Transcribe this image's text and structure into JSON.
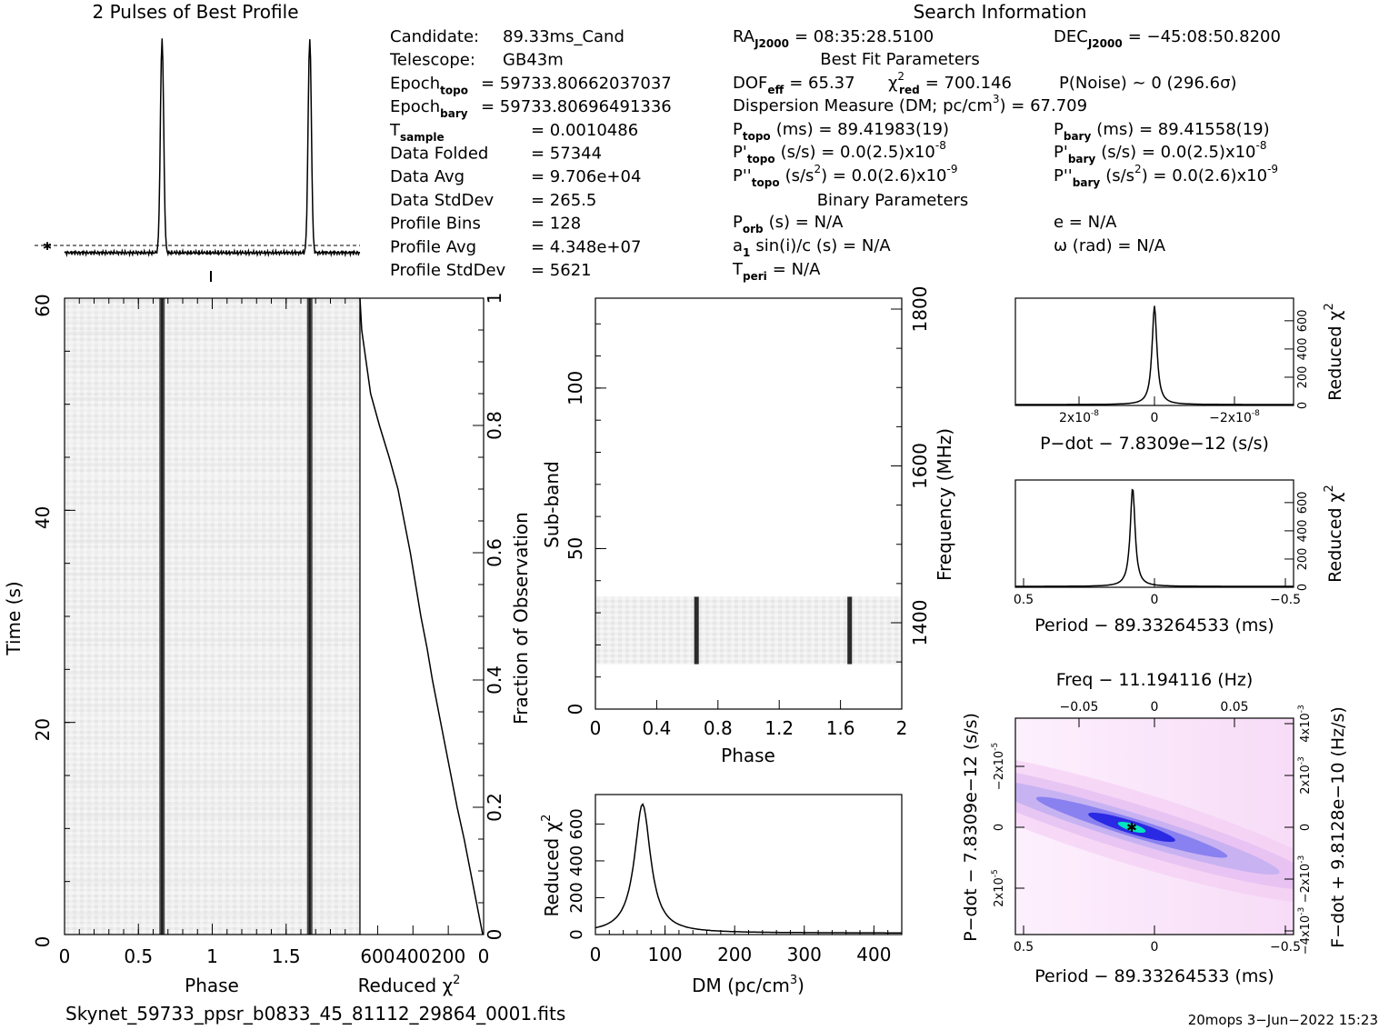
{
  "header": {
    "profile_title": "2 Pulses of Best Profile",
    "search_title": "Search Information",
    "best_fit_title": "Best Fit Parameters",
    "binary_title": "Binary Parameters"
  },
  "info_left": [
    {
      "label": "Candidate:",
      "value": "89.33ms_Cand"
    },
    {
      "label": "Telescope:",
      "value": "GB43m"
    },
    {
      "label": "Epoch",
      "sub": "topo",
      "value": "= 59733.80662037037"
    },
    {
      "label": "Epoch",
      "sub": "bary",
      "value": "= 59733.80696491336"
    },
    {
      "label": "T",
      "sub": "sample",
      "value": "=   0.0010486"
    },
    {
      "label": "Data Folded",
      "value": "=   57344"
    },
    {
      "label": "Data Avg",
      "value": "=   9.706e+04"
    },
    {
      "label": "Data StdDev",
      "value": "=   265.5"
    },
    {
      "label": "Profile Bins",
      "value": "=   128"
    },
    {
      "label": "Profile Avg",
      "value": "=   4.348e+07"
    },
    {
      "label": "Profile StdDev",
      "value": "=   5621"
    }
  ],
  "info_mid": {
    "ra": {
      "label": "RA",
      "sub": "J2000",
      "value": "= 08:35:28.5100"
    },
    "dof": {
      "label": "DOF",
      "sub": "eff",
      "value": "= 65.37"
    },
    "chi2": {
      "label": "χ",
      "sup": "2",
      "sub": "red",
      "value": "= 700.146"
    },
    "pnoise": "P(Noise) ~ 0    (296.6σ)",
    "dm": {
      "text": "Dispersion Measure (DM; pc/cm",
      "sup": "3",
      "tail": ") = 67.709"
    },
    "ptopo": {
      "label": "P",
      "sub": "topo",
      "value": "(ms) =  89.41983(19)"
    },
    "pdtopo": {
      "label": "P'",
      "sub": "topo",
      "value": "(s/s) = 0.0(2.5)x10",
      "exp": "-8"
    },
    "pddtopo": {
      "label": "P''",
      "sub": "topo",
      "value": "(s/s",
      "sup": "2",
      "tail": ") = 0.0(2.6)x10",
      "exp": "-9"
    },
    "porb": {
      "label": "P",
      "sub": "orb",
      "value": "(s) = N/A"
    },
    "a1": {
      "label": "a",
      "sub": "1",
      "value": "sin(i)/c (s) = N/A"
    },
    "tperi": {
      "label": "T",
      "sub": "peri",
      "value": "= N/A"
    }
  },
  "info_right": {
    "dec": {
      "label": "DEC",
      "sub": "J2000",
      "value": "= −45:08:50.8200"
    },
    "pbary": {
      "label": "P",
      "sub": "bary",
      "value": "(ms) =  89.41558(19)"
    },
    "pdbary": {
      "label": "P'",
      "sub": "bary",
      "value": "(s/s) = 0.0(2.5)x10",
      "exp": "-8"
    },
    "pddbary": {
      "label": "P''",
      "sub": "bary",
      "value": "(s/s",
      "sup": "2",
      "tail": ") = 0.0(2.6)x10",
      "exp": "-9"
    },
    "ecc": "e = N/A",
    "omega": "ω (rad) = N/A"
  },
  "footer": {
    "filename": "Skynet_59733_ppsr_b0833_45_81112_29864_0001.fits",
    "stamp": "20mops   3−Jun−2022 15:23"
  },
  "colors": {
    "ink": "#000000",
    "grey_bg": "#f2f2f2",
    "pulse": "#444444",
    "pdot_bg": "#fbe9fb",
    "pdot_band": "#1a1ae0",
    "pdot_peak": "#00e5c0"
  },
  "chart_data": [
    {
      "id": "profile",
      "type": "line",
      "title": "2 Pulses of Best Profile",
      "x_range": [
        0,
        2
      ],
      "pulse_phase": [
        0.66,
        1.66
      ],
      "baseline_level": 0.04,
      "pulse_width_phase": 0.02
    },
    {
      "id": "time_phase",
      "type": "heatmap",
      "xlabel": "Phase",
      "ylabel": "Time (s)",
      "xlim": [
        0,
        2
      ],
      "ylim": [
        0,
        60
      ],
      "xticks": [
        "0",
        "0.5",
        "1",
        "1.5"
      ],
      "yticks": [
        "0",
        "20",
        "40",
        "60"
      ],
      "pulse_phase": [
        0.66,
        1.66
      ]
    },
    {
      "id": "time_chi2",
      "type": "line",
      "xlabel": "Reduced χ",
      "xlabel_sup": "2",
      "ylabel_right": "Fraction of Observation",
      "xticks": [
        "600",
        "400",
        "200",
        "0"
      ],
      "yticks_right": [
        "0",
        "0.2",
        "0.4",
        "0.6",
        "0.8",
        "1"
      ],
      "xlim": [
        700,
        0
      ],
      "fraction": [
        0,
        0.05,
        0.1,
        0.15,
        0.2,
        0.25,
        0.3,
        0.35,
        0.4,
        0.45,
        0.5,
        0.55,
        0.6,
        0.65,
        0.7,
        0.75,
        0.8,
        0.85,
        0.9,
        0.95,
        1.0
      ],
      "chi2": [
        5,
        40,
        75,
        110,
        150,
        185,
        220,
        255,
        290,
        320,
        355,
        385,
        415,
        450,
        485,
        535,
        590,
        640,
        665,
        690,
        700
      ]
    },
    {
      "id": "subband_phase",
      "type": "heatmap",
      "xlabel": "Phase",
      "ylabel": "Sub-band",
      "ylabel_right": "Frequency (MHz)",
      "xlim": [
        0,
        2
      ],
      "ylim": [
        0,
        128
      ],
      "xticks": [
        "0",
        "0.4",
        "0.8",
        "1.2",
        "1.6",
        "2"
      ],
      "yticks": [
        "0",
        "50",
        "100"
      ],
      "yticks_right": [
        "1400",
        "1600",
        "1800"
      ],
      "band_range": [
        14,
        35
      ],
      "pulse_phase": [
        0.66,
        1.66
      ]
    },
    {
      "id": "dm_chi2",
      "type": "line",
      "xlabel": "DM (pc/cm",
      "xlabel_sup": "3",
      "xlabel_tail": ")",
      "ylabel": "Reduced χ",
      "ylabel_sup": "2",
      "xlim": [
        0,
        440
      ],
      "ylim": [
        0,
        760
      ],
      "xticks": [
        "0",
        "100",
        "200",
        "300",
        "400"
      ],
      "yticks": [
        "0",
        "200",
        "400",
        "600"
      ],
      "peak_dm": 67.7,
      "peak_chi2": 700
    },
    {
      "id": "pdot_chi2",
      "type": "line",
      "xlabel": "P−dot − 7.8309e−12 (s/s)",
      "ylabel_right": "Reduced χ",
      "ylabel_sup": "2",
      "xticks": [
        "2x10",
        "0",
        "−2x10"
      ],
      "xtick_exp": "-8",
      "yticks_right": [
        "0",
        "200",
        "400",
        "600"
      ],
      "peak_chi2": 700
    },
    {
      "id": "period_chi2",
      "type": "line",
      "xlabel": "Period − 89.33264533 (ms)",
      "ylabel_right": "Reduced χ",
      "ylabel_sup": "2",
      "xticks": [
        "0.5",
        "0",
        "−0.5"
      ],
      "yticks_right": [
        "0",
        "200",
        "400",
        "600"
      ],
      "peak_chi2": 700
    },
    {
      "id": "p_pdot",
      "type": "heatmap",
      "title": "Freq − 11.194116 (Hz)",
      "xlabel": "Period − 89.33264533 (ms)",
      "ylabel": "P−dot − 7.8309e−12 (s/s)",
      "ylabel_right": "F−dot + 9.8128e−10 (Hz/s)",
      "xticks": [
        "0.5",
        "0",
        "−0.5"
      ],
      "top_ticks": [
        "−0.05",
        "0",
        "0.05"
      ],
      "yticks": [
        "−2x10",
        "0",
        "2x10"
      ],
      "ytick_exp": "-5",
      "yticks_right": [
        "−4x10",
        "−2x10",
        "0",
        "2x10",
        "4x10"
      ],
      "ytick_right_exp": "-3"
    }
  ]
}
